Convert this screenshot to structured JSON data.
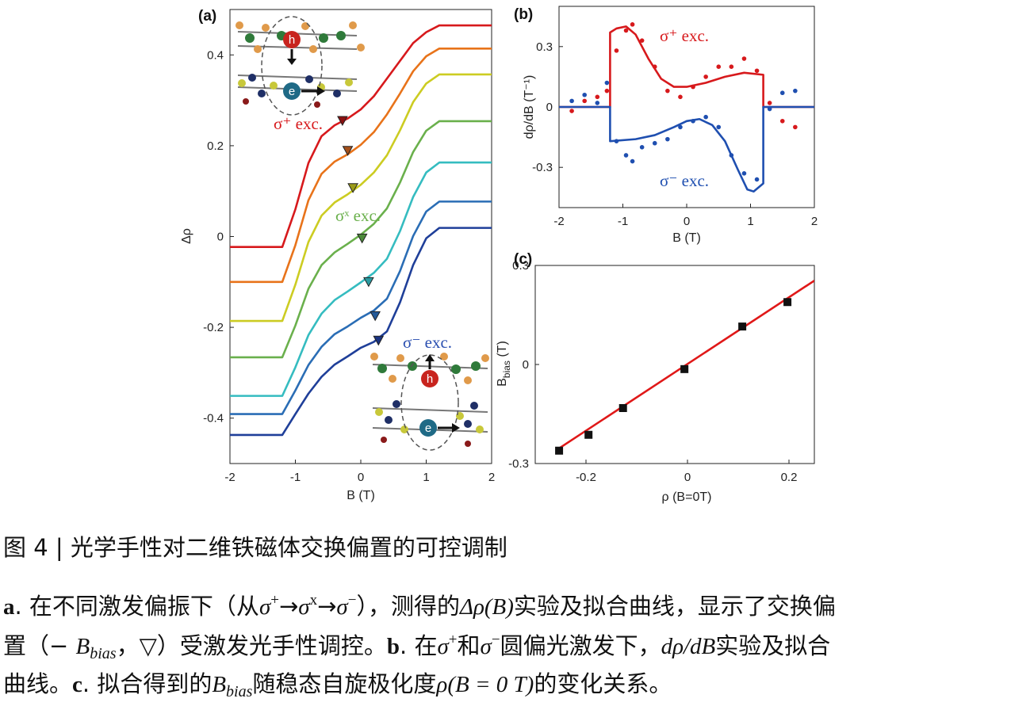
{
  "chart_data": [
    {
      "type": "line",
      "panel_label": "(a)",
      "xlabel": "B (T)",
      "ylabel": "Δρ",
      "xlim": [
        -2,
        2
      ],
      "ylim": [
        -0.5,
        0.5
      ],
      "xticks": [
        -2,
        -1,
        0,
        1,
        2
      ],
      "yticks": [
        -0.4,
        -0.2,
        0,
        0.2,
        0.4
      ],
      "series": [
        {
          "style": "line",
          "color": "#d7191c",
          "x": [
            -2,
            -1.2,
            -1,
            -0.8,
            -0.6,
            -0.4,
            -0.2,
            0,
            0.2,
            0.4,
            0.6,
            0.8,
            1,
            1.2,
            2
          ],
          "values": [
            -0.023,
            -0.023,
            0.06,
            0.162,
            0.221,
            0.245,
            0.26,
            0.28,
            0.309,
            0.348,
            0.387,
            0.426,
            0.45,
            0.465,
            0.465
          ]
        },
        {
          "style": "line",
          "color": "#e8731a",
          "x": [
            -2,
            -1.2,
            -1,
            -0.8,
            -0.6,
            -0.4,
            -0.2,
            0,
            0.2,
            0.4,
            0.6,
            0.8,
            1,
            1.2,
            2
          ],
          "values": [
            -0.1,
            -0.1,
            -0.019,
            0.08,
            0.138,
            0.165,
            0.181,
            0.202,
            0.23,
            0.269,
            0.315,
            0.364,
            0.397,
            0.414,
            0.414
          ]
        },
        {
          "style": "line",
          "color": "#cccc22",
          "x": [
            -2,
            -1.2,
            -1,
            -0.8,
            -0.6,
            -0.4,
            -0.2,
            0,
            0.2,
            0.4,
            0.6,
            0.8,
            1,
            1.2,
            2
          ],
          "values": [
            -0.186,
            -0.186,
            -0.106,
            -0.012,
            0.046,
            0.075,
            0.093,
            0.114,
            0.141,
            0.179,
            0.234,
            0.296,
            0.337,
            0.357,
            0.357
          ]
        },
        {
          "style": "line",
          "color": "#6ab04c",
          "x": [
            -2,
            -1.2,
            -1,
            -0.8,
            -0.6,
            -0.4,
            -0.2,
            0,
            0.2,
            0.4,
            0.6,
            0.8,
            1,
            1.2,
            2
          ],
          "values": [
            -0.266,
            -0.266,
            -0.196,
            -0.115,
            -0.063,
            -0.035,
            -0.016,
            0.004,
            0.028,
            0.062,
            0.119,
            0.186,
            0.233,
            0.254,
            0.254
          ]
        },
        {
          "style": "line",
          "color": "#35bcc0",
          "x": [
            -2,
            -1.2,
            -1,
            -0.8,
            -0.6,
            -0.4,
            -0.2,
            0,
            0.2,
            0.4,
            0.6,
            0.8,
            1,
            1.2,
            2
          ],
          "values": [
            -0.351,
            -0.351,
            -0.288,
            -0.217,
            -0.17,
            -0.14,
            -0.121,
            -0.101,
            -0.08,
            -0.049,
            0.012,
            0.087,
            0.141,
            0.163,
            0.163
          ]
        },
        {
          "style": "line",
          "color": "#2a6db5",
          "x": [
            -2,
            -1.2,
            -1,
            -0.8,
            -0.6,
            -0.4,
            -0.2,
            0,
            0.2,
            0.4,
            0.6,
            0.8,
            1,
            1.2,
            2
          ],
          "values": [
            -0.391,
            -0.391,
            -0.339,
            -0.283,
            -0.243,
            -0.215,
            -0.198,
            -0.179,
            -0.163,
            -0.137,
            -0.076,
            0.001,
            0.055,
            0.077,
            0.077
          ]
        },
        {
          "style": "line",
          "color": "#1f3f99",
          "x": [
            -2,
            -1.2,
            -1,
            -0.8,
            -0.6,
            -0.4,
            -0.2,
            0,
            0.2,
            0.4,
            0.6,
            0.8,
            1,
            1.2,
            2
          ],
          "values": [
            -0.437,
            -0.437,
            -0.391,
            -0.346,
            -0.309,
            -0.282,
            -0.264,
            -0.245,
            -0.232,
            -0.209,
            -0.145,
            -0.063,
            -0.004,
            0.019,
            0.019
          ]
        },
        {
          "style": "triangles",
          "colors": [
            "#8a1010",
            "#a4501a",
            "#9a9a18",
            "#4c8a3a",
            "#2a9aa0",
            "#245a98",
            "#1a3380"
          ],
          "x": [
            -0.28,
            -0.2,
            -0.12,
            0.02,
            0.12,
            0.22,
            0.27
          ],
          "values": [
            0.254,
            0.188,
            0.106,
            -0.005,
            -0.101,
            -0.176,
            -0.23
          ]
        }
      ],
      "annotations": [
        {
          "text": "σ⁺ exc.",
          "color": "#d7191c"
        },
        {
          "text": "σˣ exc.",
          "color": "#6ab04c"
        },
        {
          "text": "σ⁻ exc.",
          "color": "#2a4fb0"
        }
      ]
    },
    {
      "type": "line",
      "panel_label": "(b)",
      "xlabel": "B (T)",
      "ylabel": "dρ/dB (T⁻¹)",
      "xlim": [
        -2,
        2
      ],
      "ylim": [
        -0.5,
        0.5
      ],
      "xticks": [
        -2,
        -1,
        0,
        1,
        2
      ],
      "yticks": [
        -0.3,
        0,
        0.3
      ],
      "series": [
        {
          "style": "line",
          "color": "#d7191c",
          "x": [
            -2,
            -1.2,
            -1.2,
            -1.1,
            -0.95,
            -0.8,
            -0.6,
            -0.4,
            -0.2,
            0,
            0.3,
            0.6,
            0.9,
            1.2,
            1.2,
            2
          ],
          "values": [
            0,
            0,
            0.37,
            0.39,
            0.4,
            0.36,
            0.24,
            0.14,
            0.1,
            0.1,
            0.12,
            0.15,
            0.17,
            0.16,
            0,
            0
          ]
        },
        {
          "style": "line",
          "color": "#1f4fb0",
          "x": [
            -2,
            -1.2,
            -1.2,
            -0.8,
            -0.5,
            -0.2,
            0,
            0.2,
            0.4,
            0.6,
            0.8,
            0.95,
            1.05,
            1.2,
            1.2,
            2
          ],
          "values": [
            0,
            0,
            -0.17,
            -0.16,
            -0.14,
            -0.1,
            -0.07,
            -0.06,
            -0.09,
            -0.17,
            -0.31,
            -0.41,
            -0.42,
            -0.38,
            0,
            0
          ]
        },
        {
          "style": "dots",
          "color": "#d7191c",
          "x": [
            -1.8,
            -1.6,
            -1.4,
            -1.25,
            -1.1,
            -0.95,
            -0.85,
            -0.7,
            -0.5,
            -0.3,
            -0.1,
            0.1,
            0.3,
            0.5,
            0.7,
            0.9,
            1.1,
            1.3,
            1.5,
            1.7
          ],
          "values": [
            -0.02,
            0.03,
            0.05,
            0.08,
            0.28,
            0.38,
            0.41,
            0.33,
            0.2,
            0.08,
            0.05,
            0.1,
            0.15,
            0.2,
            0.2,
            0.24,
            0.18,
            0.02,
            -0.07,
            -0.1
          ]
        },
        {
          "style": "dots",
          "color": "#1f4fb0",
          "x": [
            -1.8,
            -1.6,
            -1.4,
            -1.25,
            -1.1,
            -0.95,
            -0.85,
            -0.7,
            -0.5,
            -0.3,
            -0.1,
            0.1,
            0.3,
            0.5,
            0.7,
            0.9,
            1.1,
            1.3,
            1.5,
            1.7
          ],
          "values": [
            0.03,
            0.06,
            0.02,
            0.12,
            -0.17,
            -0.24,
            -0.27,
            -0.2,
            -0.18,
            -0.16,
            -0.1,
            -0.07,
            -0.05,
            -0.1,
            -0.24,
            -0.33,
            -0.36,
            -0.01,
            0.07,
            0.08
          ]
        }
      ],
      "annotations": [
        {
          "text": "σ⁺ exc.",
          "color": "#d7191c"
        },
        {
          "text": "σ⁻ exc.",
          "color": "#1f4fb0"
        }
      ]
    },
    {
      "type": "scatter",
      "panel_label": "(c)",
      "xlabel": "ρ (B=0T)",
      "ylabel": "B",
      "ylabel_sub": "bias",
      "ylabel_unit": " (T)",
      "xlim": [
        -0.3,
        0.25
      ],
      "ylim": [
        -0.3,
        0.3
      ],
      "xticks": [
        -0.2,
        0,
        0.2
      ],
      "yticks": [
        -0.3,
        0,
        0.3
      ],
      "series": [
        {
          "style": "line",
          "color": "#e01818",
          "x": [
            -0.253,
            0.25
          ],
          "values": [
            -0.254,
            0.254
          ]
        },
        {
          "style": "squares",
          "color": "#111111",
          "x": [
            -0.253,
            -0.195,
            -0.127,
            -0.006,
            0.108,
            0.197
          ],
          "values": [
            -0.261,
            -0.213,
            -0.132,
            -0.014,
            0.115,
            0.189
          ]
        }
      ]
    }
  ],
  "insets": [
    {
      "hole": "h",
      "electron": "e"
    },
    {
      "hole": "h",
      "electron": "e"
    }
  ],
  "caption": {
    "title": "图 4 |  光学手性对二维铁磁体交换偏置的可控调制",
    "lines": [
      [
        {
          "text": "a",
          "format": "bold"
        },
        {
          "text": ". 在不同激发偏振下（从"
        },
        {
          "text": "σ",
          "format": "italic"
        },
        {
          "text": "+",
          "format": "sup"
        },
        {
          "text": "→"
        },
        {
          "text": "σ",
          "format": "italic"
        },
        {
          "text": "x",
          "format": "sup"
        },
        {
          "text": "→"
        },
        {
          "text": "σ",
          "format": "italic"
        },
        {
          "text": "−",
          "format": "sup"
        },
        {
          "text": "），测得的"
        },
        {
          "text": "Δρ(B)",
          "format": "italic"
        },
        {
          "text": "实验及拟合曲线，显示了交换偏"
        }
      ],
      [
        {
          "text": "置（− "
        },
        {
          "text": "B",
          "format": "italic"
        },
        {
          "text": "bias",
          "format": "sub"
        },
        {
          "text": "，▽）受激发光手性调控。"
        },
        {
          "text": "b",
          "format": "bold"
        },
        {
          "text": ". 在"
        },
        {
          "text": "σ",
          "format": "italic"
        },
        {
          "text": "+",
          "format": "sup"
        },
        {
          "text": "和"
        },
        {
          "text": "σ",
          "format": "italic"
        },
        {
          "text": "−",
          "format": "sup"
        },
        {
          "text": "圆偏光激发下，"
        },
        {
          "text": "dρ/dB",
          "format": "italic"
        },
        {
          "text": "实验及拟合"
        }
      ],
      [
        {
          "text": "曲线。"
        },
        {
          "text": "c",
          "format": "bold"
        },
        {
          "text": ". 拟合得到的"
        },
        {
          "text": "B",
          "format": "italic"
        },
        {
          "text": "bias",
          "format": "sub"
        },
        {
          "text": "随稳态自旋极化度"
        },
        {
          "text": "ρ(B = 0 T)",
          "format": "italic"
        },
        {
          "text": "的变化关系。"
        }
      ]
    ]
  }
}
